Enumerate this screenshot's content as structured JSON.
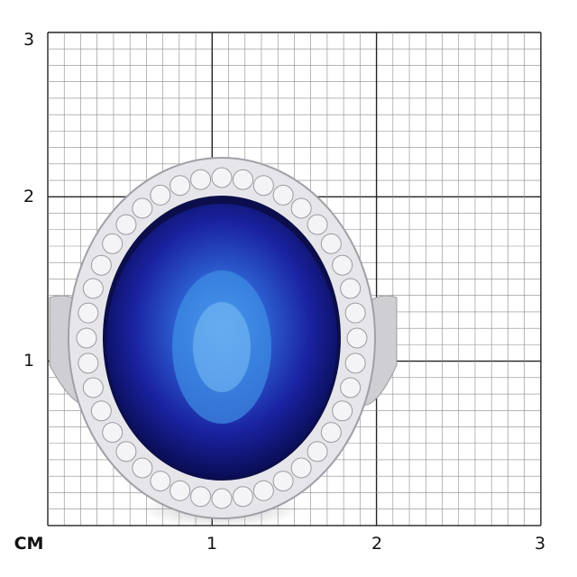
{
  "scale": {
    "unit_label": "CM",
    "x_ticks": [
      "1",
      "2",
      "3"
    ],
    "y_ticks": [
      "3",
      "2",
      "1"
    ],
    "grid_color": "#8a8a8a",
    "major_grid_color": "#222222"
  },
  "subject": {
    "icon": "sapphire-diamond-halo-ring",
    "gem_color": "#1a2a9c",
    "metal_color": "#d8d8dc"
  }
}
